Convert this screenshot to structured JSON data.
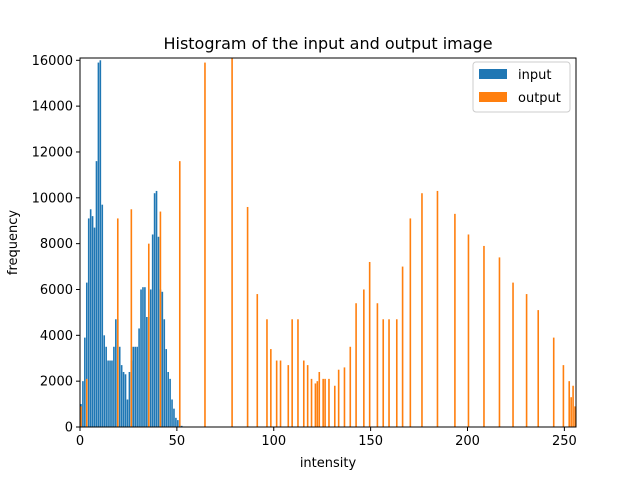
{
  "chart_data": {
    "type": "bar",
    "title": "Histogram of the input and output image",
    "xlabel": "intensity",
    "ylabel": "frequency",
    "xlim": [
      0,
      256
    ],
    "ylim": [
      0,
      16100
    ],
    "xticks": [
      0,
      50,
      100,
      150,
      200,
      250
    ],
    "yticks": [
      0,
      2000,
      4000,
      6000,
      8000,
      10000,
      12000,
      14000,
      16000
    ],
    "legend_position": "upper right",
    "grid": false,
    "series": [
      {
        "name": "input",
        "color": "#1f77b4",
        "x": [
          0,
          1,
          2,
          3,
          4,
          5,
          6,
          7,
          8,
          9,
          10,
          11,
          12,
          13,
          14,
          15,
          16,
          17,
          18,
          19,
          20,
          21,
          22,
          23,
          24,
          25,
          26,
          27,
          28,
          29,
          30,
          31,
          32,
          33,
          34,
          35,
          36,
          37,
          38,
          39,
          40,
          41,
          42,
          43,
          44,
          45,
          46,
          47,
          48,
          49,
          50,
          51,
          52,
          53,
          54,
          55,
          56,
          57
        ],
        "values": [
          1000,
          2000,
          3900,
          6300,
          9100,
          9500,
          9200,
          8700,
          11600,
          15900,
          16000,
          9700,
          4000,
          3500,
          2900,
          2900,
          2900,
          3500,
          4700,
          4700,
          3500,
          2700,
          2400,
          2300,
          1200,
          2400,
          2900,
          3500,
          3500,
          3500,
          4300,
          6000,
          6100,
          6100,
          4800,
          4800,
          6000,
          8400,
          10200,
          10300,
          8300,
          6000,
          5900,
          4700,
          3400,
          2400,
          2100,
          1200,
          800,
          400,
          300,
          100,
          50,
          20,
          10,
          5,
          2,
          1
        ]
      },
      {
        "name": "output",
        "color": "#ff7f0e",
        "x": [
          0,
          3,
          19,
          26,
          35,
          41,
          51,
          64,
          78,
          86,
          91,
          96,
          98,
          101,
          103,
          107,
          109,
          112,
          115,
          117,
          119,
          121,
          122,
          123,
          125,
          126,
          128,
          131,
          133,
          136,
          139,
          142,
          146,
          149,
          153,
          156,
          159,
          163,
          166,
          170,
          176,
          184,
          193,
          200,
          208,
          216,
          223,
          230,
          236,
          244,
          249,
          252,
          253,
          254,
          255
        ],
        "values": [
          900,
          2100,
          9100,
          9500,
          8000,
          9400,
          11600,
          15900,
          16100,
          9600,
          5800,
          4700,
          3400,
          2900,
          2900,
          2700,
          4700,
          4700,
          2900,
          2700,
          2100,
          1900,
          2000,
          2400,
          2100,
          2100,
          2100,
          1800,
          2500,
          2600,
          3500,
          5400,
          6000,
          7200,
          5400,
          4700,
          4700,
          4700,
          7000,
          9100,
          10200,
          10300,
          9300,
          8400,
          7900,
          7400,
          6300,
          5800,
          5100,
          3900,
          2700,
          2000,
          1300,
          1800,
          900
        ]
      }
    ],
    "legend": [
      "input",
      "output"
    ]
  }
}
